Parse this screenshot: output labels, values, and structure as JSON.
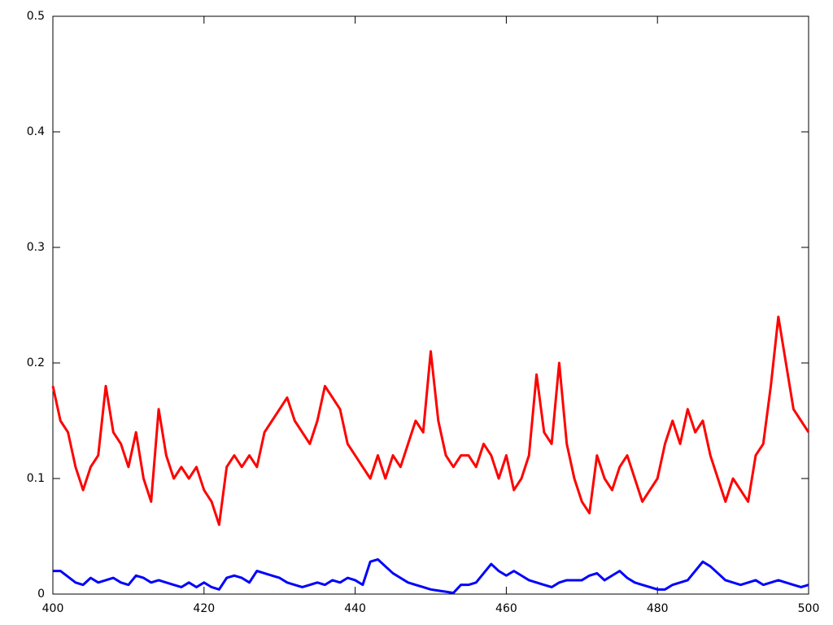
{
  "chart_data": {
    "type": "line",
    "x": [
      400,
      401,
      402,
      403,
      404,
      405,
      406,
      407,
      408,
      409,
      410,
      411,
      412,
      413,
      414,
      415,
      416,
      417,
      418,
      419,
      420,
      421,
      422,
      423,
      424,
      425,
      426,
      427,
      428,
      429,
      430,
      431,
      432,
      433,
      434,
      435,
      436,
      437,
      438,
      439,
      440,
      441,
      442,
      443,
      444,
      445,
      446,
      447,
      448,
      449,
      450,
      451,
      452,
      453,
      454,
      455,
      456,
      457,
      458,
      459,
      460,
      461,
      462,
      463,
      464,
      465,
      466,
      467,
      468,
      469,
      470,
      471,
      472,
      473,
      474,
      475,
      476,
      477,
      478,
      479,
      480,
      481,
      482,
      483,
      484,
      485,
      486,
      487,
      488,
      489,
      490,
      491,
      492,
      493,
      494,
      495,
      496,
      497,
      498,
      499,
      500
    ],
    "series": [
      {
        "color": "#ff0000",
        "values": [
          0.18,
          0.15,
          0.14,
          0.11,
          0.09,
          0.11,
          0.12,
          0.18,
          0.14,
          0.13,
          0.11,
          0.14,
          0.1,
          0.08,
          0.16,
          0.12,
          0.1,
          0.11,
          0.1,
          0.11,
          0.09,
          0.08,
          0.06,
          0.11,
          0.12,
          0.11,
          0.12,
          0.11,
          0.14,
          0.15,
          0.16,
          0.17,
          0.15,
          0.14,
          0.13,
          0.15,
          0.18,
          0.17,
          0.16,
          0.13,
          0.12,
          0.11,
          0.1,
          0.12,
          0.1,
          0.12,
          0.11,
          0.13,
          0.15,
          0.14,
          0.21,
          0.15,
          0.12,
          0.11,
          0.12,
          0.12,
          0.11,
          0.13,
          0.12,
          0.1,
          0.12,
          0.09,
          0.1,
          0.12,
          0.19,
          0.14,
          0.13,
          0.2,
          0.13,
          0.1,
          0.08,
          0.07,
          0.12,
          0.1,
          0.09,
          0.11,
          0.12,
          0.1,
          0.08,
          0.09,
          0.1,
          0.13,
          0.15,
          0.13,
          0.16,
          0.14,
          0.15,
          0.12,
          0.1,
          0.08,
          0.1,
          0.09,
          0.08,
          0.12,
          0.13,
          0.18,
          0.24,
          0.2,
          0.16,
          0.15,
          0.14
        ]
      },
      {
        "color": "#0000ff",
        "values": [
          0.02,
          0.02,
          0.015,
          0.01,
          0.008,
          0.014,
          0.01,
          0.012,
          0.014,
          0.01,
          0.008,
          0.016,
          0.014,
          0.01,
          0.012,
          0.01,
          0.008,
          0.006,
          0.01,
          0.006,
          0.01,
          0.006,
          0.004,
          0.014,
          0.016,
          0.014,
          0.01,
          0.02,
          0.018,
          0.016,
          0.014,
          0.01,
          0.008,
          0.006,
          0.008,
          0.01,
          0.008,
          0.012,
          0.01,
          0.014,
          0.012,
          0.008,
          0.028,
          0.03,
          0.024,
          0.018,
          0.014,
          0.01,
          0.008,
          0.006,
          0.004,
          0.003,
          0.002,
          0.001,
          0.008,
          0.008,
          0.01,
          0.018,
          0.026,
          0.02,
          0.016,
          0.02,
          0.016,
          0.012,
          0.01,
          0.008,
          0.006,
          0.01,
          0.012,
          0.012,
          0.012,
          0.016,
          0.018,
          0.012,
          0.016,
          0.02,
          0.014,
          0.01,
          0.008,
          0.006,
          0.004,
          0.004,
          0.008,
          0.01,
          0.012,
          0.02,
          0.028,
          0.024,
          0.018,
          0.012,
          0.01,
          0.008,
          0.01,
          0.012,
          0.008,
          0.01,
          0.012,
          0.01,
          0.008,
          0.006,
          0.008
        ]
      }
    ],
    "xlim": [
      400,
      500
    ],
    "xticks": [
      400,
      420,
      440,
      460,
      480,
      500
    ],
    "ylim": [
      0,
      0.5
    ],
    "yticks": [
      0,
      0.1,
      0.2,
      0.3,
      0.4,
      0.5
    ]
  }
}
